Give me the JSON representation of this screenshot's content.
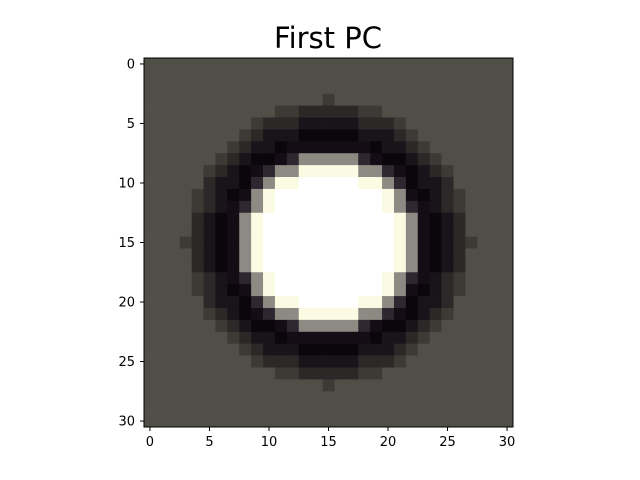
{
  "chart_data": {
    "type": "heatmap",
    "title": "First PC",
    "xlabel": "",
    "ylabel": "",
    "grid": false,
    "xlim": [
      -0.5,
      30.5
    ],
    "ylim": [
      30.5,
      -0.5
    ],
    "xticks": [
      0,
      5,
      10,
      15,
      20,
      25,
      30
    ],
    "yticks": [
      0,
      5,
      10,
      15,
      20,
      25,
      30
    ],
    "xtick_labels": [
      "0",
      "5",
      "10",
      "15",
      "20",
      "25",
      "30"
    ],
    "ytick_labels": [
      "0",
      "5",
      "10",
      "15",
      "20",
      "25",
      "30"
    ],
    "size": [
      31,
      31
    ],
    "center": [
      15,
      15
    ],
    "radial_profile": [
      {
        "r_max": 5.8,
        "color": "#ffffff"
      },
      {
        "r_max": 6.6,
        "color": "#fbfbe3"
      },
      {
        "r_max": 7.3,
        "color": "#8d8a83"
      },
      {
        "r_max": 7.9,
        "color": "#2e2730"
      },
      {
        "r_max": 8.6,
        "color": "#140d15"
      },
      {
        "r_max": 9.4,
        "color": "#0a060c"
      },
      {
        "r_max": 10.3,
        "color": "#191419"
      },
      {
        "r_max": 11.2,
        "color": "#2b2828"
      },
      {
        "r_max": 12.0,
        "color": "#3b3a34"
      },
      {
        "r_max": 99,
        "color": "#4f4e47"
      }
    ]
  }
}
